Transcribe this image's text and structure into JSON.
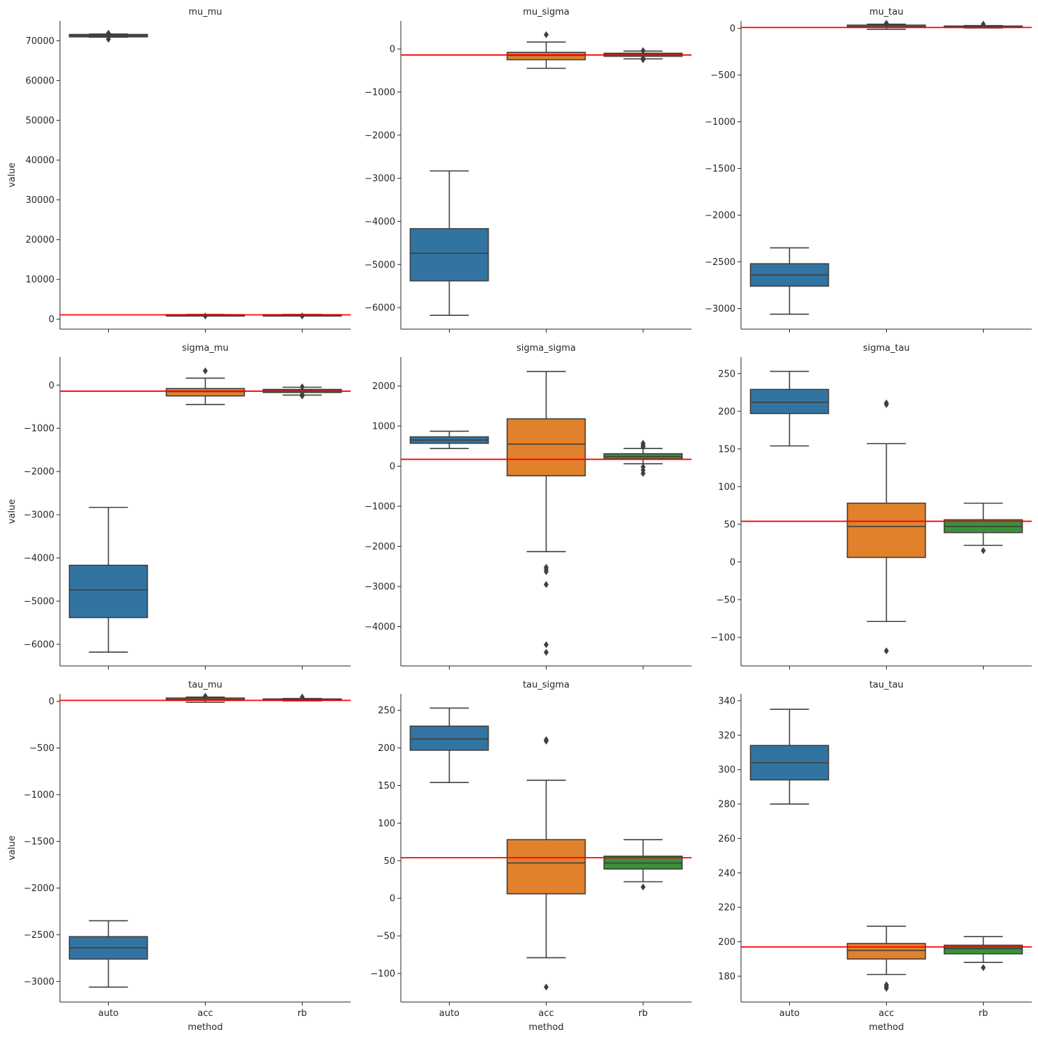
{
  "figure": {
    "x_axis_label": "method",
    "y_axis_label": "value",
    "categories": [
      "auto",
      "acc",
      "rb"
    ],
    "colors": {
      "auto": "#3274a1",
      "acc": "#e1812c",
      "rb": "#3a923a",
      "reference_line": "#ff0000",
      "box_edge": "#3f3f3f"
    }
  },
  "chart_data": [
    {
      "type": "box",
      "title": "mu_mu",
      "ylim": [
        -2500,
        75000
      ],
      "yticks": [
        "0",
        "10000",
        "20000",
        "30000",
        "40000",
        "50000",
        "60000",
        "70000"
      ],
      "yticks_values": [
        0,
        10000,
        20000,
        30000,
        40000,
        50000,
        60000,
        70000
      ],
      "reference_line": 1100,
      "boxes": [
        {
          "category": "auto",
          "whisker_low": 70900,
          "q1": 71000,
          "median": 71300,
          "q3": 71600,
          "whisker_high": 71700,
          "outliers": [
            70400,
            71900
          ]
        },
        {
          "category": "acc",
          "whisker_low": 900,
          "q1": 1000,
          "median": 1050,
          "q3": 1150,
          "whisker_high": 1200,
          "outliers": [
            800
          ]
        },
        {
          "category": "rb",
          "whisker_low": 900,
          "q1": 1000,
          "median": 1050,
          "q3": 1150,
          "whisker_high": 1200,
          "outliers": [
            800
          ]
        }
      ]
    },
    {
      "type": "box",
      "title": "mu_sigma",
      "ylim": [
        -6500,
        650
      ],
      "yticks": [
        "−6000",
        "−5000",
        "−4000",
        "−3000",
        "−2000",
        "−1000",
        "0"
      ],
      "yticks_values": [
        -6000,
        -5000,
        -4000,
        -3000,
        -2000,
        -1000,
        0
      ],
      "reference_line": -140,
      "boxes": [
        {
          "category": "auto",
          "whisker_low": -6180,
          "q1": -5380,
          "median": -4740,
          "q3": -4170,
          "whisker_high": -2830,
          "outliers": []
        },
        {
          "category": "acc",
          "whisker_low": -450,
          "q1": -250,
          "median": -150,
          "q3": -80,
          "whisker_high": 160,
          "outliers": [
            330
          ]
        },
        {
          "category": "rb",
          "whisker_low": -230,
          "q1": -170,
          "median": -130,
          "q3": -100,
          "whisker_high": -50,
          "outliers": [
            -250,
            -220,
            -40
          ]
        }
      ]
    },
    {
      "type": "box",
      "title": "mu_tau",
      "ylim": [
        -3220,
        80
      ],
      "yticks": [
        "−3000",
        "−2500",
        "−2000",
        "−1500",
        "−1000",
        "−500",
        "0"
      ],
      "yticks_values": [
        -3000,
        -2500,
        -2000,
        -1500,
        -1000,
        -500,
        0
      ],
      "reference_line": 10,
      "boxes": [
        {
          "category": "auto",
          "whisker_low": -3060,
          "q1": -2760,
          "median": -2640,
          "q3": -2520,
          "whisker_high": -2350,
          "outliers": []
        },
        {
          "category": "acc",
          "whisker_low": -10,
          "q1": 10,
          "median": 20,
          "q3": 35,
          "whisker_high": 45,
          "outliers": [
            55
          ]
        },
        {
          "category": "rb",
          "whisker_low": 5,
          "q1": 10,
          "median": 15,
          "q3": 25,
          "whisker_high": 30,
          "outliers": [
            45
          ]
        }
      ]
    },
    {
      "type": "box",
      "title": "sigma_mu",
      "ylim": [
        -6500,
        650
      ],
      "yticks": [
        "−6000",
        "−5000",
        "−4000",
        "−3000",
        "−2000",
        "−1000",
        "0"
      ],
      "yticks_values": [
        -6000,
        -5000,
        -4000,
        -3000,
        -2000,
        -1000,
        0
      ],
      "reference_line": -140,
      "boxes": [
        {
          "category": "auto",
          "whisker_low": -6180,
          "q1": -5380,
          "median": -4740,
          "q3": -4170,
          "whisker_high": -2830,
          "outliers": []
        },
        {
          "category": "acc",
          "whisker_low": -450,
          "q1": -250,
          "median": -150,
          "q3": -80,
          "whisker_high": 160,
          "outliers": [
            330
          ]
        },
        {
          "category": "rb",
          "whisker_low": -230,
          "q1": -170,
          "median": -130,
          "q3": -100,
          "whisker_high": -50,
          "outliers": [
            -250,
            -220,
            -40
          ]
        }
      ]
    },
    {
      "type": "box",
      "title": "sigma_sigma",
      "ylim": [
        -4980,
        2720
      ],
      "yticks": [
        "−4000",
        "−3000",
        "−2000",
        "−1000",
        "0",
        "1000",
        "2000"
      ],
      "yticks_values": [
        -4000,
        -3000,
        -2000,
        -1000,
        0,
        1000,
        2000
      ],
      "reference_line": 170,
      "boxes": [
        {
          "category": "auto",
          "whisker_low": 440,
          "q1": 570,
          "median": 650,
          "q3": 730,
          "whisker_high": 870,
          "outliers": []
        },
        {
          "category": "acc",
          "whisker_low": -2130,
          "q1": -240,
          "median": 550,
          "q3": 1180,
          "whisker_high": 2360,
          "outliers": [
            -2520,
            -2570,
            -2630,
            -2950,
            -4450,
            -4640
          ]
        },
        {
          "category": "rb",
          "whisker_low": 60,
          "q1": 180,
          "median": 240,
          "q3": 310,
          "whisker_high": 440,
          "outliers": [
            -20,
            -100,
            -180,
            480,
            520,
            570
          ]
        }
      ]
    },
    {
      "type": "box",
      "title": "sigma_tau",
      "ylim": [
        -138,
        272
      ],
      "yticks": [
        "−100",
        "−50",
        "0",
        "50",
        "100",
        "150",
        "200",
        "250"
      ],
      "yticks_values": [
        -100,
        -50,
        0,
        50,
        100,
        150,
        200,
        250
      ],
      "reference_line": 54,
      "boxes": [
        {
          "category": "auto",
          "whisker_low": 154,
          "q1": 197,
          "median": 212,
          "q3": 229,
          "whisker_high": 253,
          "outliers": []
        },
        {
          "category": "acc",
          "whisker_low": -79,
          "q1": 6,
          "median": 47,
          "q3": 78,
          "whisker_high": 157,
          "outliers": [
            209,
            211,
            -118
          ]
        },
        {
          "category": "rb",
          "whisker_low": 22,
          "q1": 39,
          "median": 47,
          "q3": 56,
          "whisker_high": 78,
          "outliers": [
            15
          ]
        }
      ]
    },
    {
      "type": "box",
      "title": "tau_mu",
      "ylim": [
        -3220,
        80
      ],
      "yticks": [
        "−3000",
        "−2500",
        "−2000",
        "−1500",
        "−1000",
        "−500",
        "0"
      ],
      "yticks_values": [
        -3000,
        -2500,
        -2000,
        -1500,
        -1000,
        -500,
        0
      ],
      "reference_line": 10,
      "boxes": [
        {
          "category": "auto",
          "whisker_low": -3060,
          "q1": -2760,
          "median": -2640,
          "q3": -2520,
          "whisker_high": -2350,
          "outliers": []
        },
        {
          "category": "acc",
          "whisker_low": -10,
          "q1": 10,
          "median": 20,
          "q3": 35,
          "whisker_high": 45,
          "outliers": [
            55
          ]
        },
        {
          "category": "rb",
          "whisker_low": 5,
          "q1": 10,
          "median": 15,
          "q3": 25,
          "whisker_high": 30,
          "outliers": [
            45
          ]
        }
      ]
    },
    {
      "type": "box",
      "title": "tau_sigma",
      "ylim": [
        -138,
        272
      ],
      "yticks": [
        "−100",
        "−50",
        "0",
        "50",
        "100",
        "150",
        "200",
        "250"
      ],
      "yticks_values": [
        -100,
        -50,
        0,
        50,
        100,
        150,
        200,
        250
      ],
      "reference_line": 54,
      "boxes": [
        {
          "category": "auto",
          "whisker_low": 154,
          "q1": 197,
          "median": 212,
          "q3": 229,
          "whisker_high": 253,
          "outliers": []
        },
        {
          "category": "acc",
          "whisker_low": -79,
          "q1": 6,
          "median": 47,
          "q3": 78,
          "whisker_high": 157,
          "outliers": [
            209,
            211,
            -118
          ]
        },
        {
          "category": "rb",
          "whisker_low": 22,
          "q1": 39,
          "median": 47,
          "q3": 56,
          "whisker_high": 78,
          "outliers": [
            15
          ]
        }
      ]
    },
    {
      "type": "box",
      "title": "tau_tau",
      "ylim": [
        165,
        344
      ],
      "yticks": [
        "180",
        "200",
        "220",
        "240",
        "260",
        "280",
        "300",
        "320",
        "340"
      ],
      "yticks_values": [
        180,
        200,
        220,
        240,
        260,
        280,
        300,
        320,
        340
      ],
      "reference_line": 197,
      "boxes": [
        {
          "category": "auto",
          "whisker_low": 280,
          "q1": 294,
          "median": 304,
          "q3": 314,
          "whisker_high": 335,
          "outliers": []
        },
        {
          "category": "acc",
          "whisker_low": 181,
          "q1": 190,
          "median": 195,
          "q3": 199,
          "whisker_high": 209,
          "outliers": [
            174,
            175,
            173
          ]
        },
        {
          "category": "rb",
          "whisker_low": 188,
          "q1": 193,
          "median": 196,
          "q3": 198,
          "whisker_high": 203,
          "outliers": [
            185
          ]
        }
      ]
    }
  ]
}
